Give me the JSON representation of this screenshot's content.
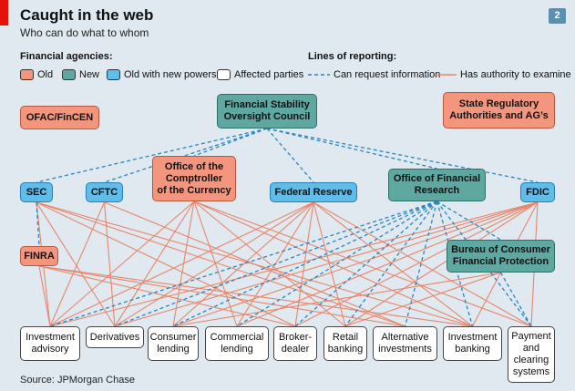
{
  "header": {
    "title": "Caught in the web",
    "subtitle": "Who can do what to whom",
    "page_number": "2"
  },
  "legend": {
    "agencies_heading": "Financial agencies:",
    "old_label": "Old",
    "new_label": "New",
    "owp_label": "Old with new powers",
    "affected_label": "Affected parties",
    "reporting_heading": "Lines of reporting:",
    "info_label": "Can request information",
    "authority_label": "Has authority to examine"
  },
  "colors": {
    "old": "#f4967d",
    "new": "#5fa8a2",
    "owp": "#60bce9",
    "affected": "#ffffff",
    "info_line": "#2a86c1",
    "authority_line": "#e8866c",
    "background": "#dfe9ef"
  },
  "nodes": {
    "ofac": "OFAC/FinCEN",
    "fsoc": "Financial Stability\nOversight Council",
    "state": "State Regulatory\nAuthorities and AG’s",
    "sec": "SEC",
    "cftc": "CFTC",
    "occ": "Office of the\nComptroller\nof the Currency",
    "fed": "Federal Reserve",
    "ofr": "Office of Financial\nResearch",
    "fdic": "FDIC",
    "finra": "FINRA",
    "bcfp": "Bureau of Consumer\nFinancial Protection",
    "a1": "Investment\nadvisory",
    "a2": "Derivatives",
    "a3": "Consumer\nlending",
    "a4": "Commercial\nlending",
    "a5": "Broker-\ndealer",
    "a6": "Retail\nbanking",
    "a7": "Alternative\ninvestments",
    "a8": "Investment\nbanking",
    "a9": "Payment\nand\nclearing\nsystems"
  },
  "edges": {
    "info": [
      [
        "fsoc",
        "sec"
      ],
      [
        "fsoc",
        "cftc"
      ],
      [
        "fsoc",
        "occ"
      ],
      [
        "fsoc",
        "fed"
      ],
      [
        "fsoc",
        "ofr"
      ],
      [
        "fsoc",
        "fdic"
      ],
      [
        "sec",
        "finra"
      ],
      [
        "ofr",
        "bcfp"
      ],
      [
        "ofr",
        "a1"
      ],
      [
        "ofr",
        "a2"
      ],
      [
        "ofr",
        "a3"
      ],
      [
        "ofr",
        "a4"
      ],
      [
        "ofr",
        "a5"
      ],
      [
        "ofr",
        "a6"
      ],
      [
        "ofr",
        "a7"
      ],
      [
        "ofr",
        "a8"
      ],
      [
        "ofr",
        "a9"
      ],
      [
        "bcfp",
        "a9"
      ]
    ],
    "authority": [
      [
        "sec",
        "a1"
      ],
      [
        "sec",
        "a2"
      ],
      [
        "sec",
        "a5"
      ],
      [
        "sec",
        "a7"
      ],
      [
        "sec",
        "a8"
      ],
      [
        "cftc",
        "a1"
      ],
      [
        "cftc",
        "a2"
      ],
      [
        "cftc",
        "a7"
      ],
      [
        "occ",
        "a1"
      ],
      [
        "occ",
        "a2"
      ],
      [
        "occ",
        "a3"
      ],
      [
        "occ",
        "a4"
      ],
      [
        "occ",
        "a6"
      ],
      [
        "occ",
        "a8"
      ],
      [
        "occ",
        "a9"
      ],
      [
        "fed",
        "a1"
      ],
      [
        "fed",
        "a2"
      ],
      [
        "fed",
        "a3"
      ],
      [
        "fed",
        "a4"
      ],
      [
        "fed",
        "a5"
      ],
      [
        "fed",
        "a6"
      ],
      [
        "fed",
        "a8"
      ],
      [
        "fed",
        "a9"
      ],
      [
        "fdic",
        "a1"
      ],
      [
        "fdic",
        "a2"
      ],
      [
        "fdic",
        "a3"
      ],
      [
        "fdic",
        "a4"
      ],
      [
        "fdic",
        "a5"
      ],
      [
        "fdic",
        "a6"
      ],
      [
        "fdic",
        "a8"
      ],
      [
        "fdic",
        "a9"
      ],
      [
        "finra",
        "a1"
      ],
      [
        "finra",
        "a5"
      ],
      [
        "finra",
        "a7"
      ],
      [
        "finra",
        "a8"
      ],
      [
        "bcfp",
        "a3"
      ],
      [
        "bcfp",
        "a6"
      ]
    ]
  },
  "source": "Source: JPMorgan Chase"
}
